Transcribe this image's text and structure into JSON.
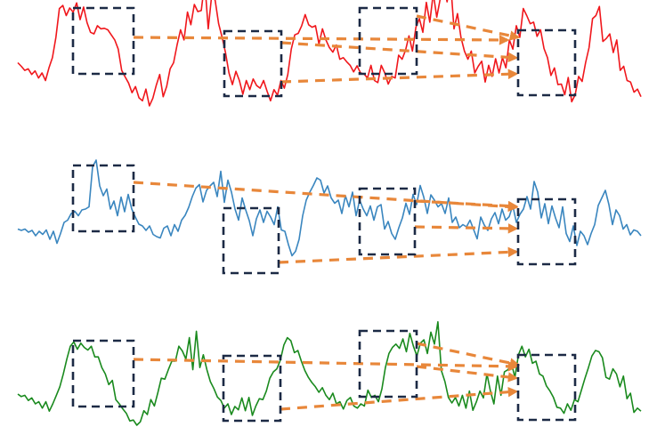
{
  "colors": {
    "background": "#ffffff",
    "box": "#1c2a45",
    "arrow": "#e8873a"
  },
  "rows": [
    {
      "name": "red-series",
      "color": "#f0171c",
      "values": [
        -0.15,
        -0.22,
        -0.3,
        -0.27,
        -0.38,
        -0.31,
        -0.45,
        -0.35,
        -0.5,
        -0.25,
        -0.05,
        0.35,
        0.92,
        0.98,
        0.78,
        0.93,
        0.85,
        1.03,
        0.7,
        0.95,
        0.64,
        0.45,
        0.42,
        0.58,
        0.52,
        0.53,
        0.5,
        0.4,
        0.3,
        0.12,
        -0.3,
        -0.43,
        -0.55,
        -0.74,
        -0.62,
        -0.84,
        -0.9,
        -0.67,
        -1.0,
        -0.85,
        -0.59,
        -0.38,
        -0.82,
        -0.62,
        -0.27,
        -0.15,
        0.2,
        0.5,
        0.3,
        0.85,
        0.6,
        1.0,
        0.86,
        0.88,
        1.45,
        0.52,
        1.18,
        1.08,
        0.62,
        0.36,
        0.05,
        -0.35,
        -0.58,
        -0.32,
        -0.5,
        -0.77,
        -0.5,
        -0.68,
        -0.47,
        -0.6,
        -0.65,
        -0.5,
        -0.71,
        -0.9,
        -0.68,
        -0.79,
        -0.5,
        -0.65,
        -0.38,
        0.12,
        0.4,
        0.43,
        0.58,
        0.8,
        0.6,
        0.55,
        0.58,
        0.22,
        0.52,
        0.3,
        0.15,
        0.06,
        0.2,
        -0.08,
        -0.05,
        -0.13,
        -0.2,
        -0.33,
        -0.21,
        -0.35,
        -0.37,
        -0.45,
        -0.2,
        -0.5,
        -0.54,
        -0.2,
        -0.35,
        -0.57,
        -0.42,
        -0.45,
        0.0,
        -0.08,
        0.1,
        0.38,
        0.08,
        0.55,
        0.72,
        0.45,
        1.04,
        0.65,
        1.22,
        0.75,
        1.1,
        1.4,
        1.05,
        1.45,
        0.52,
        0.82,
        0.35,
        0.08,
        -0.08,
        0.08,
        -0.35,
        -0.22,
        -0.12,
        -0.53,
        -0.2,
        -0.42,
        -0.07,
        -0.35,
        -0.05,
        -0.25,
        0.3,
        0.12,
        0.58,
        0.35,
        0.92,
        0.78,
        0.62,
        0.65,
        0.37,
        0.5,
        0.13,
        -0.05,
        -0.4,
        -0.25,
        -0.58,
        -0.57,
        -0.78,
        -0.44,
        -0.92,
        -0.78,
        -0.42,
        -0.52,
        -0.15,
        0.15,
        0.72,
        0.78,
        0.96,
        0.27,
        0.33,
        0.42,
        0.05,
        0.3,
        -0.3,
        -0.22,
        -0.5,
        -0.53,
        -0.73,
        -0.67,
        -0.82
      ]
    },
    {
      "name": "blue-series",
      "color": "#3a86bf",
      "values": [
        -0.15,
        -0.18,
        -0.15,
        -0.22,
        -0.18,
        -0.3,
        -0.2,
        -0.27,
        -0.17,
        -0.38,
        -0.2,
        -0.47,
        -0.25,
        0.0,
        0.05,
        0.2,
        0.25,
        0.15,
        0.28,
        0.3,
        0.35,
        1.25,
        1.4,
        0.82,
        0.6,
        0.75,
        0.3,
        0.48,
        0.15,
        0.57,
        0.24,
        0.63,
        0.3,
        0.12,
        -0.04,
        -0.08,
        -0.18,
        -0.08,
        -0.27,
        -0.32,
        -0.35,
        -0.13,
        -0.08,
        -0.3,
        -0.05,
        -0.2,
        0.05,
        0.16,
        0.34,
        0.58,
        0.77,
        0.85,
        0.46,
        0.72,
        0.82,
        0.9,
        0.58,
        1.15,
        0.45,
        0.95,
        0.68,
        0.3,
        0.05,
        0.55,
        0.28,
        0.04,
        -0.3,
        0.08,
        0.28,
        0.0,
        0.25,
        0.12,
        -0.05,
        0.35,
        -0.17,
        -0.2,
        -0.5,
        -0.75,
        -0.65,
        -0.38,
        0.15,
        0.5,
        0.68,
        0.83,
        1.0,
        0.95,
        0.66,
        0.82,
        0.55,
        0.43,
        0.5,
        0.2,
        0.6,
        0.35,
        0.68,
        0.15,
        0.5,
        0.3,
        0.15,
        0.37,
        0.05,
        0.35,
        0.4,
        -0.15,
        0.02,
        -0.25,
        -0.38,
        -0.12,
        0.1,
        0.43,
        0.18,
        0.63,
        0.4,
        0.83,
        0.57,
        0.2,
        0.62,
        0.5,
        0.35,
        0.42,
        0.2,
        0.55,
        0.0,
        0.12,
        -0.12,
        -0.05,
        -0.1,
        0.05,
        -0.16,
        -0.37,
        0.12,
        -0.06,
        -0.18,
        0.08,
        0.22,
        -0.03,
        0.3,
        0.05,
        0.13,
        0.38,
        0.0,
        0.18,
        0.3,
        0.58,
        0.3,
        0.92,
        0.68,
        0.1,
        0.42,
        -0.03,
        0.37,
        0.1,
        -0.12,
        0.35,
        -0.25,
        -0.43,
        -0.08,
        -0.52,
        -0.2,
        -0.3,
        -0.5,
        -0.25,
        -0.05,
        0.38,
        0.55,
        0.72,
        0.4,
        -0.05,
        0.28,
        0.15,
        -0.15,
        -0.05,
        -0.28,
        -0.17,
        -0.2,
        -0.3
      ]
    },
    {
      "name": "green-series",
      "color": "#1a8a1e",
      "values": [
        -0.27,
        -0.33,
        -0.3,
        -0.42,
        -0.36,
        -0.5,
        -0.45,
        -0.6,
        -0.45,
        -0.67,
        -0.5,
        -0.3,
        -0.1,
        0.2,
        0.55,
        0.85,
        0.95,
        0.78,
        0.92,
        0.82,
        0.76,
        0.85,
        0.6,
        0.6,
        0.35,
        0.2,
        -0.05,
        0.05,
        -0.4,
        -0.5,
        -0.62,
        -0.72,
        -0.9,
        -0.88,
        -1.0,
        -0.92,
        -0.66,
        -0.75,
        -0.4,
        -0.55,
        -0.24,
        0.1,
        0.08,
        0.3,
        0.5,
        0.5,
        0.85,
        0.74,
        0.55,
        1.05,
        0.3,
        1.2,
        0.35,
        0.65,
        0.3,
        0.02,
        -0.14,
        -0.34,
        -0.42,
        -0.6,
        -0.5,
        -0.75,
        -0.56,
        -0.64,
        -0.36,
        -0.66,
        -0.35,
        -0.77,
        -0.55,
        -0.38,
        -0.4,
        -0.2,
        0.1,
        0.25,
        0.32,
        0.52,
        0.88,
        1.05,
        0.98,
        0.7,
        0.75,
        0.5,
        0.28,
        0.12,
        0.0,
        -0.1,
        -0.23,
        -0.12,
        -0.3,
        -0.4,
        -0.25,
        -0.5,
        -0.45,
        -0.62,
        -0.42,
        -0.35,
        -0.55,
        -0.6,
        -0.5,
        -0.55,
        -0.18,
        -0.35,
        -0.3,
        -0.45,
        -0.15,
        0.35,
        0.68,
        0.82,
        0.9,
        0.8,
        1.02,
        0.72,
        1.15,
        0.85,
        0.62,
        0.92,
        1.0,
        0.68,
        1.18,
        0.9,
        1.42,
        0.28,
        0.02,
        -0.35,
        -0.48,
        -0.35,
        -0.55,
        -0.3,
        -0.6,
        -0.2,
        -0.65,
        -0.45,
        -0.2,
        -0.36,
        0.2,
        -0.2,
        -0.5,
        0.15,
        -0.3,
        0.25,
        0.3,
        0.45,
        0.12,
        0.65,
        0.85,
        0.6,
        0.78,
        0.45,
        0.5,
        0.2,
        0.15,
        -0.08,
        -0.2,
        -0.35,
        -0.58,
        -0.6,
        -0.72,
        -0.5,
        -0.65,
        -0.4,
        -0.45,
        -0.18,
        0.1,
        0.35,
        0.62,
        0.75,
        0.72,
        0.58,
        0.12,
        0.08,
        0.32,
        0.2,
        -0.1,
        0.15,
        -0.38,
        -0.25,
        -0.7,
        -0.6,
        -0.67
      ]
    }
  ]
}
